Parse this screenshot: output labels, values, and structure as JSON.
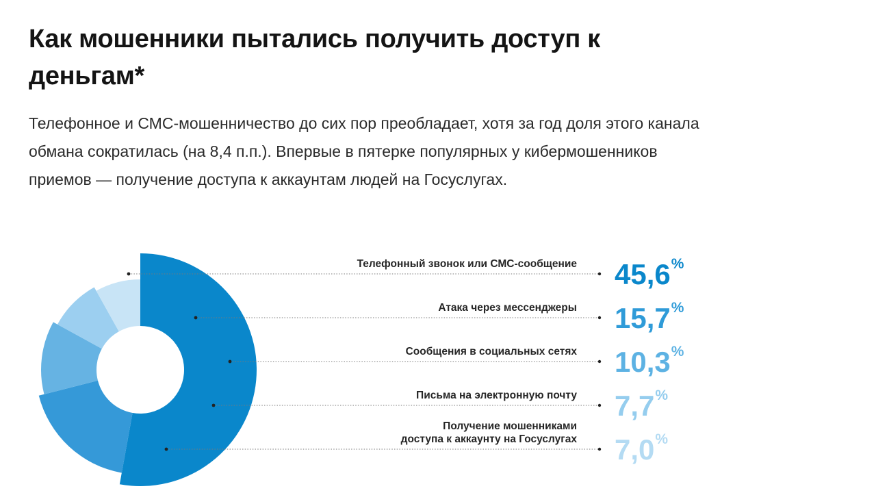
{
  "page": {
    "title": "Как мошенники пытались получить доступ к деньгам*",
    "description": "Телефонное и СМС-мошенничество до сих пор преобладает, хотя за год доля этого канала обмана сократилась (на 8,4 п.п.). Впервые в пятерке популярных у кибермошенников приемов — получение доступа к аккаунтам людей на Госуслугах."
  },
  "chart_data": {
    "type": "pie",
    "variant": "donut-with-varying-radius",
    "title": "Как мошенники пытались получить доступ к деньгам*",
    "unit": "%",
    "percent_sign": "%",
    "categories": [
      "Телефонный звонок или СМС-сообщение",
      "Атака через мессенджеры",
      "Сообщения в социальных сетях",
      "Письма на электронную почту",
      "Получение мошенниками доступа к аккаунту на Госуслугах"
    ],
    "values": [
      45.6,
      15.7,
      10.3,
      7.7,
      7.0
    ],
    "value_labels": [
      "45,6",
      "15,7",
      "10,3",
      "7,7",
      "7,0"
    ],
    "label_lines": [
      [
        "Телефонный звонок или СМС-сообщение"
      ],
      [
        "Атака через мессенджеры"
      ],
      [
        "Сообщения в социальных сетях"
      ],
      [
        "Письма на электронную почту"
      ],
      [
        "Получение мошенниками",
        "доступа к аккаунту на Госуслугах"
      ]
    ],
    "colors": [
      "#0a87cb",
      "#3599d8",
      "#66b3e3",
      "#9ccff0",
      "#c8e4f6"
    ],
    "legend": "right"
  }
}
